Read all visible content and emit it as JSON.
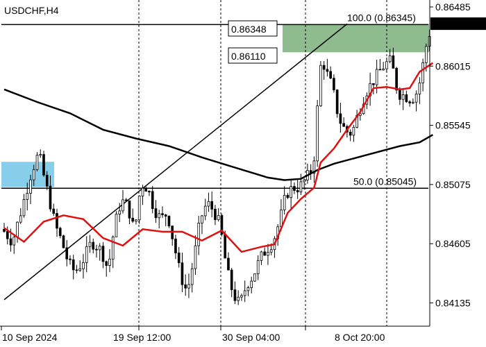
{
  "symbol_label": "USDCHF,H4",
  "chart_data": {
    "type": "candlestick",
    "title": "USDCHF,H4",
    "ylim": [
      0.8395,
      0.8654
    ],
    "y_ticks": [
      "0.86485",
      "0.86015",
      "0.85545",
      "0.85075",
      "0.84605",
      "0.84135"
    ],
    "x_ticks": [
      "10 Sep 2024",
      "19 Sep 12:00",
      "30 Sep 04:00",
      "8 Oct 20:00"
    ],
    "current_price": "0.86352",
    "levels": [
      {
        "label": "100.0 (0.86345)",
        "value": 0.86345
      },
      {
        "label": "50.0 (0.85045)",
        "value": 0.85045
      }
    ],
    "boxed_labels": [
      "0.86348",
      "0.86110"
    ],
    "zones": [
      {
        "color": "#8fbc8f",
        "y_top": 0.86348,
        "y_bottom": 0.86125
      },
      {
        "color": "#87ceeb",
        "y_top": 0.85255,
        "y_bottom": 0.85055
      }
    ],
    "candle_count": 130,
    "ma_fast_color": "#e01010",
    "ma_slow_color": "#000000",
    "ma_fast": [
      [
        0,
        0.8473
      ],
      [
        6,
        0.8462
      ],
      [
        12,
        0.8478
      ],
      [
        18,
        0.8483
      ],
      [
        24,
        0.848
      ],
      [
        30,
        0.8465
      ],
      [
        36,
        0.8459
      ],
      [
        42,
        0.8472
      ],
      [
        48,
        0.847
      ],
      [
        54,
        0.847
      ],
      [
        60,
        0.8463
      ],
      [
        66,
        0.8471
      ],
      [
        72,
        0.8454
      ],
      [
        78,
        0.8458
      ],
      [
        82,
        0.846
      ],
      [
        86,
        0.8485
      ],
      [
        90,
        0.8496
      ],
      [
        94,
        0.8505
      ],
      [
        96,
        0.8525
      ],
      [
        100,
        0.8536
      ],
      [
        104,
        0.8551
      ],
      [
        108,
        0.8565
      ],
      [
        112,
        0.8584
      ],
      [
        116,
        0.8585
      ],
      [
        120,
        0.8583
      ],
      [
        123,
        0.8584
      ],
      [
        126,
        0.8597
      ],
      [
        130,
        0.8604
      ]
    ],
    "ma_slow": [
      [
        0,
        0.8583
      ],
      [
        10,
        0.8573
      ],
      [
        20,
        0.8564
      ],
      [
        30,
        0.8551
      ],
      [
        40,
        0.8544
      ],
      [
        50,
        0.8538
      ],
      [
        60,
        0.8529
      ],
      [
        70,
        0.8521
      ],
      [
        80,
        0.8513
      ],
      [
        85,
        0.8511
      ],
      [
        90,
        0.8512
      ],
      [
        95,
        0.8519
      ],
      [
        100,
        0.8524
      ],
      [
        110,
        0.8531
      ],
      [
        120,
        0.8538
      ],
      [
        126,
        0.8541
      ],
      [
        130,
        0.8547
      ]
    ],
    "trend_line": [
      [
        0,
        0.8416
      ],
      [
        104,
        0.8635
      ]
    ]
  },
  "colors": {
    "bull": "#ffffff",
    "bear": "#000000",
    "up_box": "#006400"
  }
}
